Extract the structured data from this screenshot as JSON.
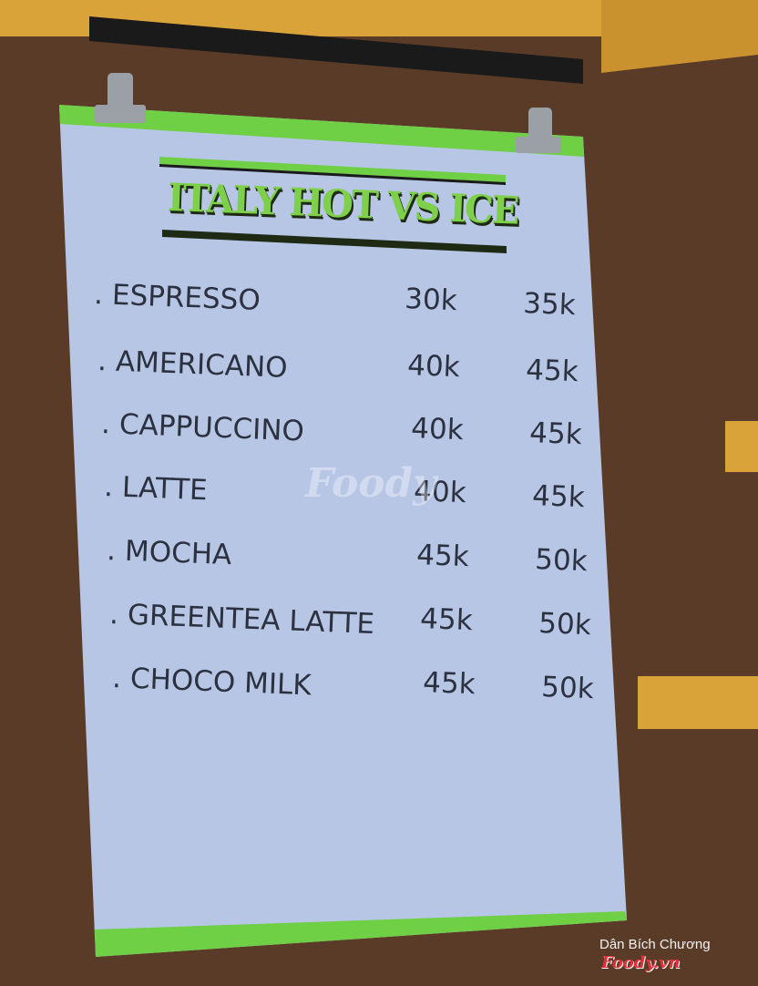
{
  "poster": {
    "title": "ITALY HOT VS ICE",
    "items": [
      {
        "name": ". ESPRESSO",
        "hot": "30k",
        "ice": "35k"
      },
      {
        "name": ". AMERICANO",
        "hot": "40k",
        "ice": "45k"
      },
      {
        "name": ". CAPPUCCINO",
        "hot": "40k",
        "ice": "45k"
      },
      {
        "name": ". LATTE",
        "hot": "40k",
        "ice": "45k"
      },
      {
        "name": ". MOCHA",
        "hot": "45k",
        "ice": "50k"
      },
      {
        "name": ". GREENTEA LATTE",
        "hot": "45k",
        "ice": "50k"
      },
      {
        "name": ". CHOCO MILK",
        "hot": "45k",
        "ice": "50k"
      }
    ],
    "accent_color": "#7ed04a",
    "paper_color": "#b8c6e6"
  },
  "watermark": {
    "center": "Foody",
    "credit": "Dân Bích Chương",
    "logo": "Foody.vn"
  }
}
